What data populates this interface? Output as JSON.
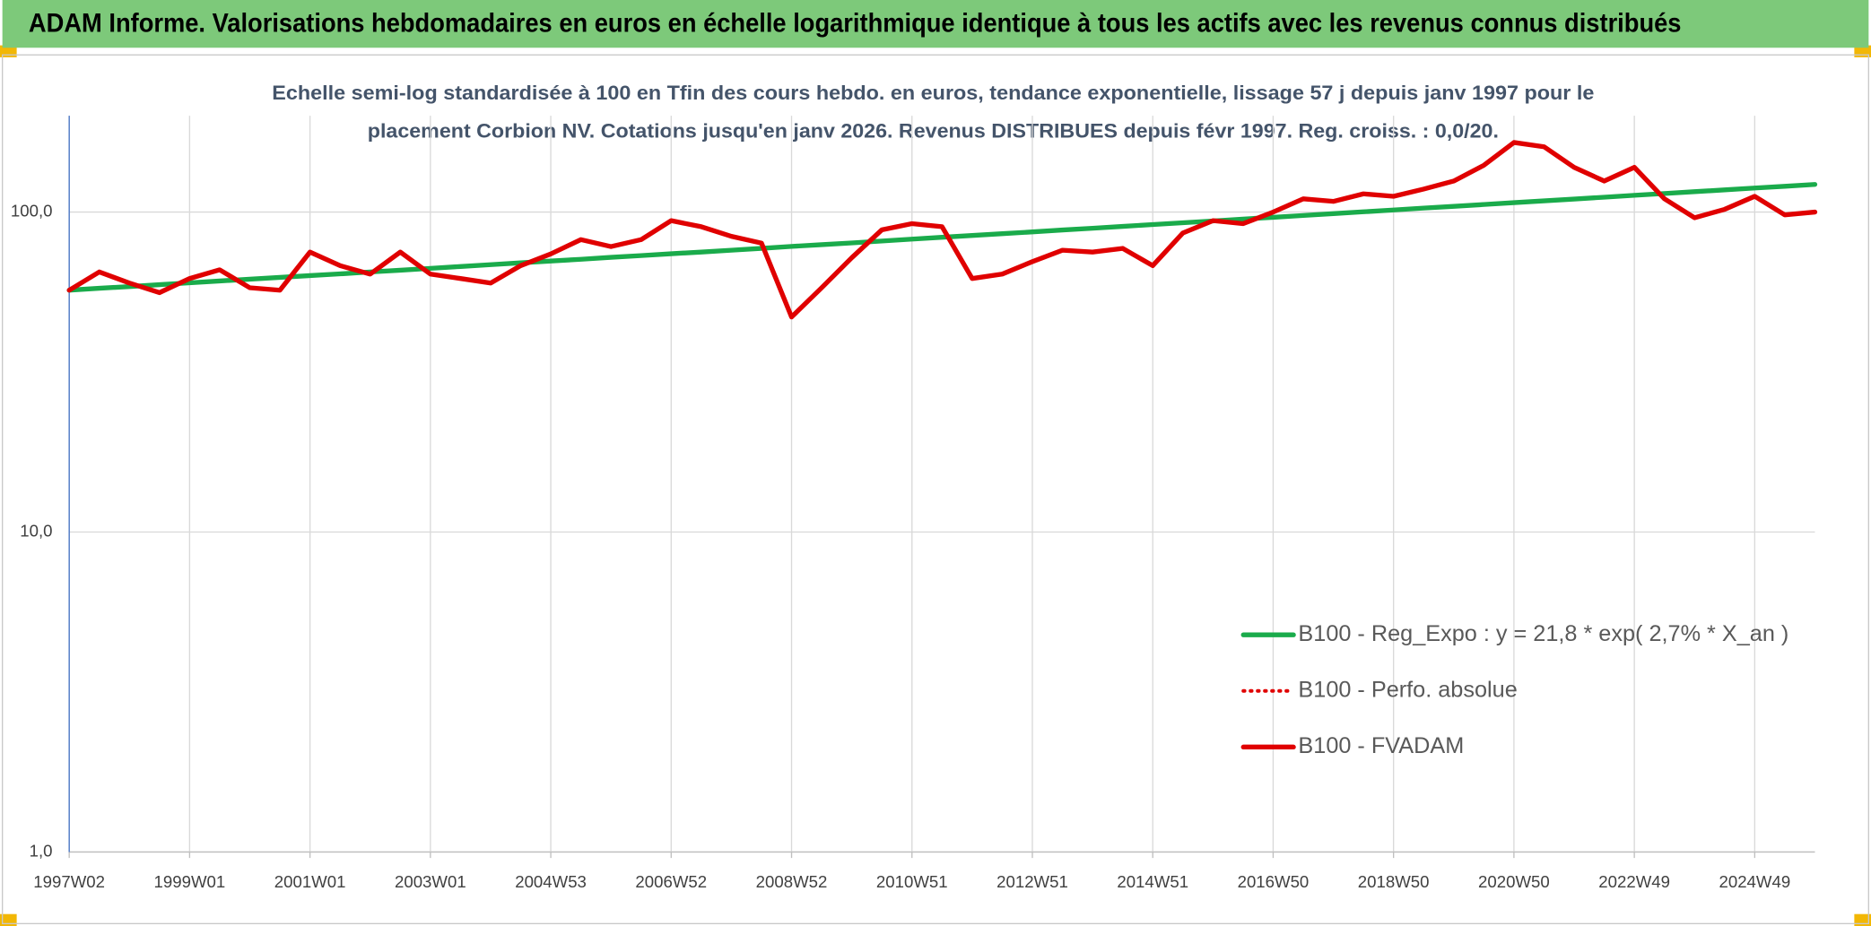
{
  "chart_data": {
    "type": "line",
    "title": "ADAM Informe. Valorisations hebdomadaires en euros en échelle logarithmique identique à tous les actifs avec les revenus connus distribués",
    "subtitle": [
      "Echelle semi-log standardisée à 100 en Tfin des cours hebdo. en euros, tendance exponentielle, lissage 57 j depuis janv 1997 pour le",
      "placement Corbion NV. Cotations jusqu'en janv 2026. Revenus DISTRIBUES depuis févr 1997. Reg. croiss. : 0,0/20."
    ],
    "categories": [
      "1997W02",
      null,
      null,
      null,
      "1999W01",
      null,
      null,
      null,
      "2001W01",
      null,
      null,
      null,
      "2003W01",
      null,
      null,
      null,
      "2004W53",
      null,
      null,
      null,
      "2006W52",
      null,
      null,
      null,
      "2008W52",
      null,
      null,
      null,
      "2010W51",
      null,
      null,
      null,
      "2012W51",
      null,
      null,
      null,
      "2014W51",
      null,
      null,
      null,
      "2016W50",
      null,
      null,
      null,
      "2018W50",
      null,
      null,
      null,
      "2020W50",
      null,
      null,
      null,
      "2022W49",
      null,
      null,
      null,
      "2024W49",
      null,
      null
    ],
    "series": [
      {
        "name": "B100 - Reg_Expo : y = 21,8 * exp( 2,7% *  X_an )",
        "color": "#1aab4b",
        "style": "solid",
        "values": [
          57.0,
          57.8,
          58.5,
          59.3,
          60.1,
          60.9,
          61.7,
          62.5,
          63.3,
          64.1,
          65.0,
          65.8,
          66.7,
          67.6,
          68.5,
          69.4,
          70.3,
          71.2,
          72.2,
          73.1,
          74.1,
          75.0,
          76.0,
          77.0,
          78.1,
          79.1,
          80.1,
          81.2,
          82.3,
          83.4,
          84.5,
          85.6,
          86.7,
          87.9,
          89.0,
          90.2,
          91.4,
          92.6,
          93.8,
          95.1,
          96.3,
          97.6,
          98.9,
          100.2,
          101.5,
          102.9,
          104.2,
          105.6,
          107.0,
          108.4,
          109.8,
          111.3,
          112.8,
          114.3,
          115.8,
          117.3,
          118.9,
          120.4,
          122.0
        ]
      },
      {
        "name": "B100 - Perfo. absolue",
        "color": "#e00000",
        "style": "dotted",
        "values": [
          57,
          65,
          60,
          56,
          62,
          66,
          58,
          57,
          75,
          68,
          64,
          75,
          64,
          62,
          60,
          68,
          74,
          82,
          78,
          82,
          94,
          90,
          84,
          80,
          47,
          58,
          72,
          88,
          92,
          90,
          62,
          64,
          70,
          76,
          75,
          77,
          68,
          86,
          94,
          92,
          100,
          110,
          108,
          114,
          112,
          118,
          125,
          140,
          165,
          160,
          138,
          125,
          138,
          110,
          96,
          102,
          112,
          98,
          100
        ]
      },
      {
        "name": "B100 - FVADAM",
        "color": "#e00000",
        "style": "solid",
        "values": [
          57,
          65,
          60,
          56,
          62,
          66,
          58,
          57,
          75,
          68,
          64,
          75,
          64,
          62,
          60,
          68,
          74,
          82,
          78,
          82,
          94,
          90,
          84,
          80,
          47,
          58,
          72,
          88,
          92,
          90,
          62,
          64,
          70,
          76,
          75,
          77,
          68,
          86,
          94,
          92,
          100,
          110,
          108,
          114,
          112,
          118,
          125,
          140,
          165,
          160,
          138,
          125,
          138,
          110,
          96,
          102,
          112,
          98,
          100
        ]
      }
    ],
    "log_y": true,
    "ylim": [
      1,
      200
    ],
    "yticks": [
      {
        "value": 1,
        "label": "1,0"
      },
      {
        "value": 10,
        "label": "10,0"
      },
      {
        "value": 100,
        "label": "100,0"
      }
    ],
    "grid": true,
    "legend": "lower right"
  }
}
